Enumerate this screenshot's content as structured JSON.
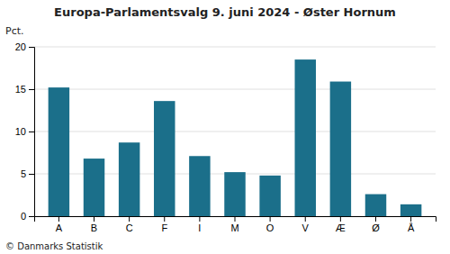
{
  "chart_data": {
    "type": "bar",
    "title": "Europa-Parlamentsvalg 9. juni 2024 - Øster Hornum",
    "ylabel": "Pct.",
    "footer": "© Danmarks Statistik",
    "categories": [
      "A",
      "B",
      "C",
      "F",
      "I",
      "M",
      "O",
      "V",
      "Æ",
      "Ø",
      "Å"
    ],
    "values": [
      15.2,
      6.8,
      8.7,
      13.6,
      7.1,
      5.2,
      4.8,
      18.5,
      15.9,
      2.6,
      1.4
    ],
    "color": "#1b6f8a",
    "ylim": [
      0,
      20
    ],
    "yticks": [
      0,
      5,
      10,
      15,
      20
    ],
    "grid": true
  }
}
